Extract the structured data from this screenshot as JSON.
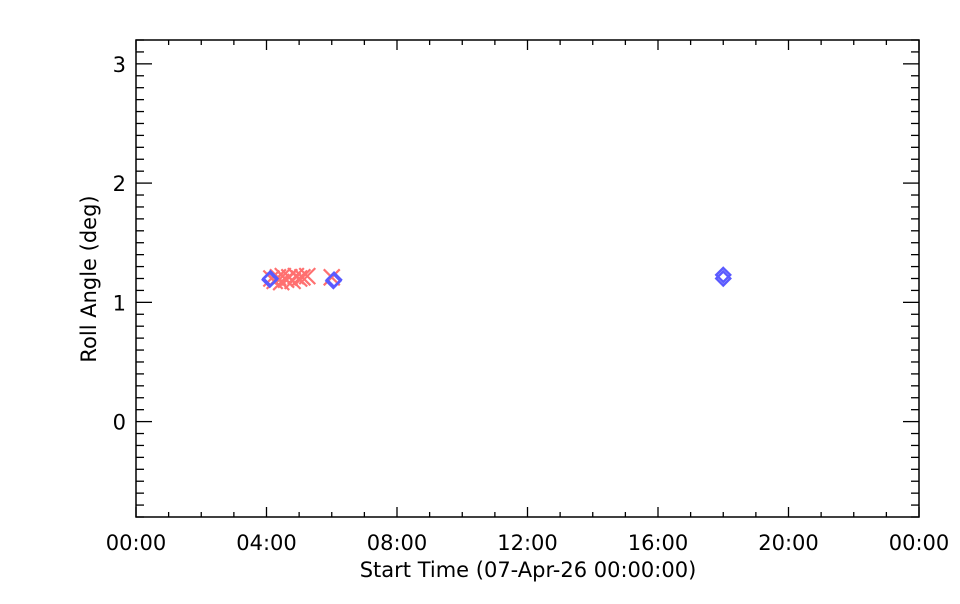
{
  "chart_data": {
    "type": "scatter",
    "title": "",
    "xlabel": "Start Time (07-Apr-26 00:00:00)",
    "ylabel": "Roll Angle (deg)",
    "xlim": [
      0,
      24
    ],
    "ylim": [
      -0.8,
      3.2
    ],
    "x_units": "hours",
    "x_ticks": [
      0,
      4,
      8,
      12,
      16,
      20,
      24
    ],
    "x_tick_labels": [
      "00:00",
      "04:00",
      "08:00",
      "12:00",
      "16:00",
      "20:00",
      "00:00"
    ],
    "y_ticks": [
      0,
      1,
      2,
      3
    ],
    "y_tick_labels": [
      "0",
      "1",
      "2",
      "3"
    ],
    "grid": false,
    "series": [
      {
        "marker": "x",
        "color": "#ff7070",
        "points": [
          [
            4.15,
            1.2
          ],
          [
            4.25,
            1.18
          ],
          [
            4.35,
            1.21
          ],
          [
            4.45,
            1.17
          ],
          [
            4.5,
            1.22
          ],
          [
            4.6,
            1.19
          ],
          [
            4.7,
            1.21
          ],
          [
            4.8,
            1.18
          ],
          [
            4.9,
            1.22
          ],
          [
            5.0,
            1.2
          ],
          [
            5.1,
            1.21
          ],
          [
            5.25,
            1.22
          ],
          [
            6.0,
            1.21
          ]
        ]
      },
      {
        "marker": "diamond",
        "color": "#5a5aff",
        "points": [
          [
            4.1,
            1.19
          ],
          [
            4.12,
            1.2
          ],
          [
            6.05,
            1.18
          ],
          [
            6.07,
            1.19
          ],
          [
            18.0,
            1.23
          ],
          [
            18.0,
            1.2
          ]
        ]
      }
    ]
  }
}
